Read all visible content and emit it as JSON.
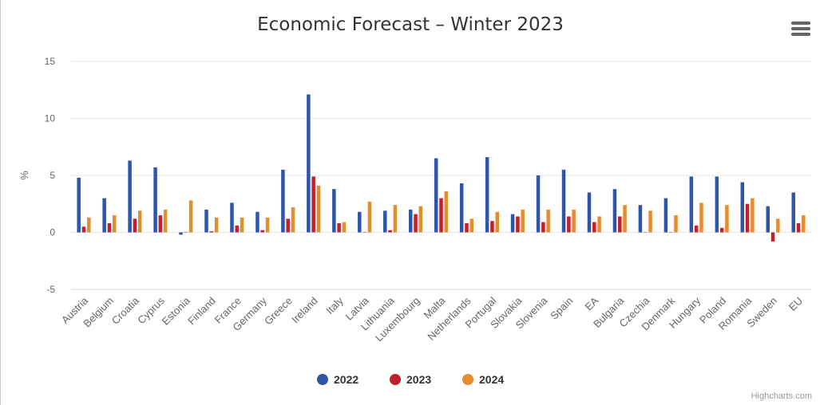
{
  "header": {
    "title": "Economic Forecast – Winter 2023"
  },
  "credits": "Highcharts.com",
  "chart_data": {
    "type": "bar",
    "title": "Economic Forecast – Winter 2023",
    "xlabel": "",
    "ylabel": "%",
    "ylim": [
      -5,
      15
    ],
    "yticks": [
      -5,
      0,
      5,
      10,
      15
    ],
    "grid": true,
    "legend": "bottom-center",
    "categories": [
      "Austria",
      "Belgium",
      "Croatia",
      "Cyprus",
      "Estonia",
      "Finland",
      "France",
      "Germany",
      "Greece",
      "Ireland",
      "Italy",
      "Latvia",
      "Lithuania",
      "Luxembourg",
      "Malta",
      "Netherlands",
      "Portugal",
      "Slovakia",
      "Slovenia",
      "Spain",
      "EA",
      "Bulgaria",
      "Czechia",
      "Denmark",
      "Hungary",
      "Poland",
      "Romania",
      "Sweden",
      "EU"
    ],
    "series": [
      {
        "name": "2022",
        "color": "#2f56a6",
        "values": [
          4.8,
          3.0,
          6.3,
          5.7,
          -0.2,
          2.0,
          2.6,
          1.8,
          5.5,
          12.1,
          3.8,
          1.8,
          1.9,
          2.0,
          6.5,
          4.3,
          6.6,
          1.6,
          5.0,
          5.5,
          3.5,
          3.8,
          2.4,
          3.0,
          4.9,
          4.9,
          4.4,
          2.3,
          3.5
        ]
      },
      {
        "name": "2023",
        "color": "#c0212a",
        "values": [
          0.5,
          0.8,
          1.2,
          1.5,
          0.0,
          0.1,
          0.6,
          0.2,
          1.2,
          4.9,
          0.8,
          0.0,
          0.2,
          1.6,
          3.0,
          0.8,
          1.0,
          1.4,
          0.9,
          1.4,
          0.9,
          1.4,
          0.0,
          0.0,
          0.6,
          0.4,
          2.5,
          -0.8,
          0.8
        ]
      },
      {
        "name": "2024",
        "color": "#e58c2e",
        "values": [
          1.3,
          1.5,
          1.9,
          2.0,
          2.8,
          1.3,
          1.3,
          1.3,
          2.2,
          4.1,
          0.9,
          2.7,
          2.4,
          2.3,
          3.6,
          1.2,
          1.8,
          2.0,
          2.0,
          2.0,
          1.4,
          2.4,
          1.9,
          1.5,
          2.6,
          2.4,
          3.0,
          1.2,
          1.5
        ]
      }
    ]
  }
}
